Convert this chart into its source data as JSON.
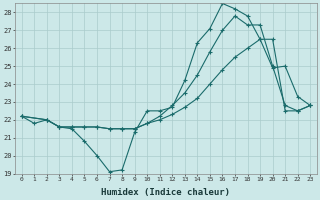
{
  "xlabel": "Humidex (Indice chaleur)",
  "bg_color": "#cce8e8",
  "grid_color": "#aacccc",
  "line_color": "#1a6b6b",
  "xlim": [
    -0.5,
    23.5
  ],
  "ylim": [
    19,
    28.5
  ],
  "yticks": [
    19,
    20,
    21,
    22,
    23,
    24,
    25,
    26,
    27,
    28
  ],
  "xticks": [
    0,
    1,
    2,
    3,
    4,
    5,
    6,
    7,
    8,
    9,
    10,
    11,
    12,
    13,
    14,
    15,
    16,
    17,
    18,
    19,
    20,
    21,
    22,
    23
  ],
  "line1_x": [
    0,
    1,
    2,
    3,
    4,
    5,
    6,
    7,
    8,
    9,
    10,
    11,
    12,
    13,
    14,
    15,
    16,
    17,
    18,
    19,
    20,
    21,
    22,
    23
  ],
  "line1_y": [
    22.2,
    21.8,
    22.0,
    21.6,
    21.5,
    20.8,
    20.0,
    19.1,
    19.2,
    21.3,
    22.5,
    22.5,
    22.7,
    24.2,
    26.3,
    27.1,
    28.5,
    28.2,
    27.8,
    26.5,
    24.9,
    25.0,
    23.3,
    22.8
  ],
  "line2_x": [
    0,
    2,
    3,
    4,
    5,
    6,
    7,
    8,
    9,
    10,
    11,
    12,
    13,
    14,
    15,
    16,
    17,
    18,
    19,
    20,
    21,
    22,
    23
  ],
  "line2_y": [
    22.2,
    22.0,
    21.6,
    21.6,
    21.6,
    21.6,
    21.5,
    21.5,
    21.5,
    21.8,
    22.0,
    22.3,
    22.7,
    23.2,
    24.0,
    24.8,
    25.5,
    26.0,
    26.5,
    26.5,
    22.5,
    22.5,
    22.8
  ],
  "line3_x": [
    0,
    2,
    3,
    4,
    5,
    6,
    7,
    8,
    9,
    10,
    11,
    12,
    13,
    14,
    15,
    16,
    17,
    18,
    19,
    20,
    21,
    22,
    23
  ],
  "line3_y": [
    22.2,
    22.0,
    21.6,
    21.6,
    21.6,
    21.6,
    21.5,
    21.5,
    21.5,
    21.8,
    22.2,
    22.8,
    23.5,
    24.5,
    25.8,
    27.0,
    27.8,
    27.3,
    27.3,
    25.0,
    22.8,
    22.5,
    22.8
  ]
}
